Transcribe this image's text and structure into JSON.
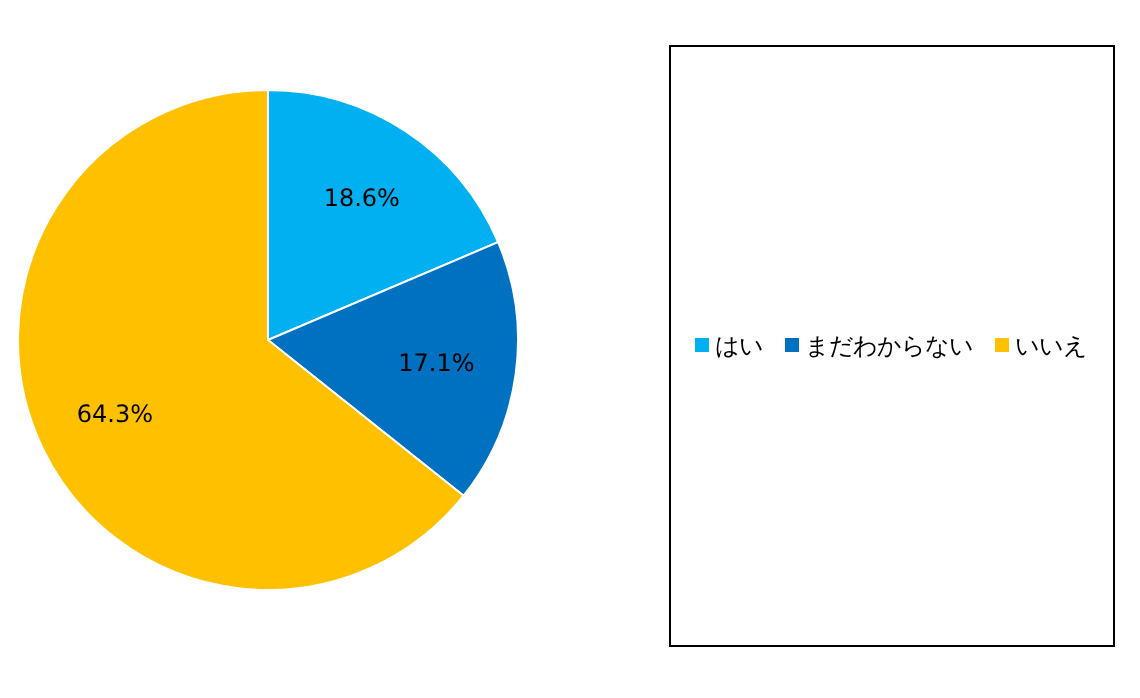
{
  "chart_data": {
    "type": "pie",
    "categories": [
      "はい",
      "まだわからない",
      "いいえ"
    ],
    "values": [
      18.6,
      17.1,
      64.3
    ],
    "colors": [
      "#00b0f0",
      "#0070c0",
      "#ffc000"
    ],
    "value_labels": [
      "18.6%",
      "17.1%",
      "64.3%"
    ],
    "legend": "right"
  }
}
